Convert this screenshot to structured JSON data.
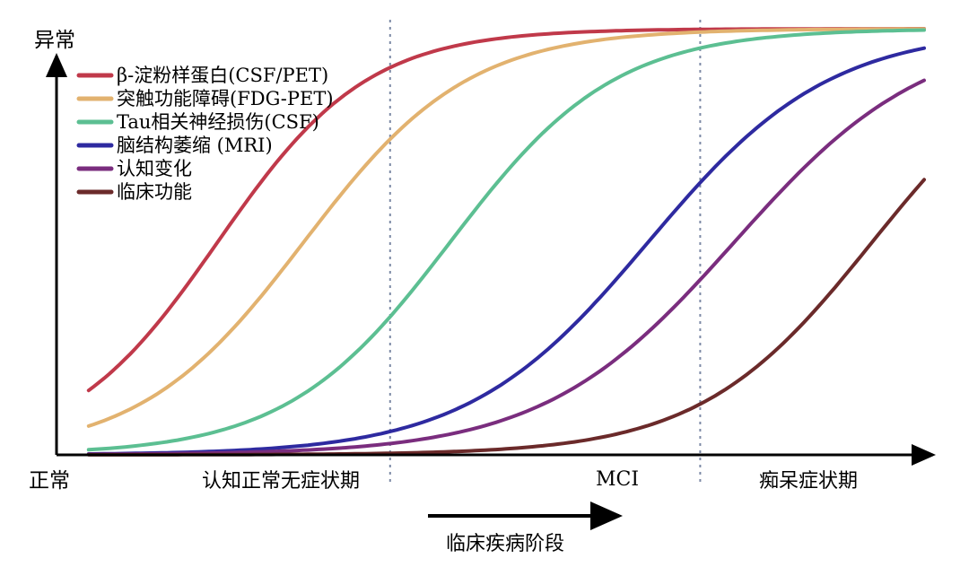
{
  "chart_data": {
    "type": "line",
    "ylabel_top": "异常",
    "ylabel_bottom": "正常",
    "xlabel": "临床疾病阶段",
    "stages": [
      "认知正常无症状期",
      "MCI",
      "痴呆症状期"
    ],
    "stage_boundaries": [
      0.38,
      0.74
    ],
    "ylim": [
      0,
      1
    ],
    "xlim": [
      0,
      1
    ],
    "grid": false,
    "legend_position": "top-left",
    "series": [
      {
        "name": "β-淀粉样蛋白(CSF/PET)",
        "color": "#c0394a",
        "midpoint": 0.18,
        "steepness": 11.5
      },
      {
        "name": "突触功能障碍(FDG-PET)",
        "color": "#e2b26f",
        "midpoint": 0.28,
        "steepness": 10.5
      },
      {
        "name": "Tau相关神经损伤(CSF)",
        "color": "#5cbf92",
        "midpoint": 0.45,
        "steepness": 10.5
      },
      {
        "name": "脑结构萎缩 (MRI)",
        "color": "#2e2aa0",
        "midpoint": 0.68,
        "steepness": 9.5
      },
      {
        "name": "认知变化",
        "color": "#7a2d7e",
        "midpoint": 0.78,
        "steepness": 9.0
      },
      {
        "name": "临床功能",
        "color": "#6b2a2a",
        "midpoint": 0.94,
        "steepness": 10.0
      }
    ]
  }
}
